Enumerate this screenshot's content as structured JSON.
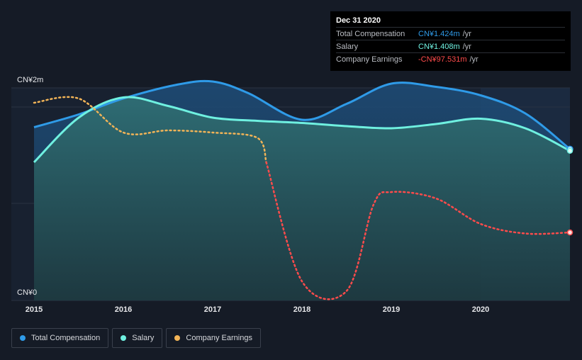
{
  "tooltip": {
    "date": "Dec 31 2020",
    "rows": [
      {
        "label": "Total Compensation",
        "value": "CN¥1.424m",
        "unit": "/yr",
        "color": "#2f9be8"
      },
      {
        "label": "Salary",
        "value": "CN¥1.408m",
        "unit": "/yr",
        "color": "#6ff0e0"
      },
      {
        "label": "Company Earnings",
        "value": "-CN¥97.531m",
        "unit": "/yr",
        "color": "#ff4b4b"
      }
    ]
  },
  "legend": [
    {
      "label": "Total Compensation",
      "color": "#2f9be8"
    },
    {
      "label": "Salary",
      "color": "#6ff0e0"
    },
    {
      "label": "Company Earnings",
      "color": "#f2b457"
    }
  ],
  "chart_data": {
    "type": "line",
    "y_axis_labels": [
      "CN¥2m",
      "CN¥0"
    ],
    "ylim": [
      0,
      2
    ],
    "x_ticks": [
      "2015",
      "2016",
      "2017",
      "2018",
      "2019",
      "2020"
    ],
    "series": [
      {
        "name": "Total Compensation",
        "color": "#2f9be8",
        "points": [
          [
            2015.0,
            1.63
          ],
          [
            2015.5,
            1.75
          ],
          [
            2016.0,
            1.9
          ],
          [
            2016.6,
            2.03
          ],
          [
            2017.0,
            2.06
          ],
          [
            2017.4,
            1.95
          ],
          [
            2018.0,
            1.7
          ],
          [
            2018.5,
            1.85
          ],
          [
            2019.0,
            2.04
          ],
          [
            2019.5,
            2.01
          ],
          [
            2020.0,
            1.93
          ],
          [
            2020.5,
            1.76
          ],
          [
            2021.0,
            1.424
          ]
        ]
      },
      {
        "name": "Salary",
        "color": "#6ff0e0",
        "points": [
          [
            2015.0,
            1.3
          ],
          [
            2015.5,
            1.72
          ],
          [
            2016.0,
            1.91
          ],
          [
            2016.5,
            1.83
          ],
          [
            2017.0,
            1.72
          ],
          [
            2017.5,
            1.69
          ],
          [
            2018.0,
            1.67
          ],
          [
            2018.5,
            1.64
          ],
          [
            2019.0,
            1.62
          ],
          [
            2019.5,
            1.66
          ],
          [
            2020.0,
            1.71
          ],
          [
            2020.5,
            1.62
          ],
          [
            2021.0,
            1.408
          ]
        ],
        "shaded_area": true
      },
      {
        "name": "Company Earnings",
        "color_positive": "#f2b457",
        "color_negative": "#ff4b4b",
        "display_scale": "normalized (separate scale, no axis)",
        "points": [
          [
            2015.0,
            1.86
          ],
          [
            2015.5,
            1.9
          ],
          [
            2016.0,
            1.58
          ],
          [
            2016.5,
            1.6
          ],
          [
            2017.0,
            1.58
          ],
          [
            2017.5,
            1.53
          ],
          [
            2017.6,
            1.3
          ],
          [
            2018.0,
            0.18
          ],
          [
            2018.5,
            0.09
          ],
          [
            2018.8,
            0.9
          ],
          [
            2019.0,
            1.02
          ],
          [
            2019.5,
            0.96
          ],
          [
            2020.0,
            0.72
          ],
          [
            2020.5,
            0.63
          ],
          [
            2021.0,
            0.64
          ]
        ]
      }
    ],
    "highlight_region": {
      "from": 2020.0,
      "to": 2021.0
    },
    "grid": "horizontal",
    "legend_position": "bottom-left"
  }
}
